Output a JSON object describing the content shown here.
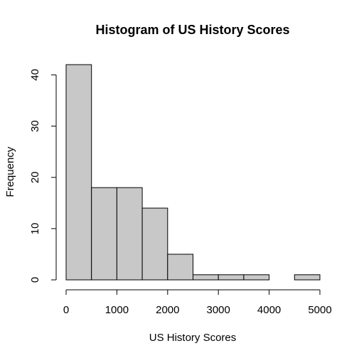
{
  "chart_data": {
    "type": "bar",
    "title": "Histogram of US History Scores",
    "xlabel": "US History Scores",
    "ylabel": "Frequency",
    "bins": [
      {
        "start": 0,
        "end": 500,
        "count": 42
      },
      {
        "start": 500,
        "end": 1000,
        "count": 18
      },
      {
        "start": 1000,
        "end": 1500,
        "count": 18
      },
      {
        "start": 1500,
        "end": 2000,
        "count": 14
      },
      {
        "start": 2000,
        "end": 2500,
        "count": 5
      },
      {
        "start": 2500,
        "end": 3000,
        "count": 1
      },
      {
        "start": 3000,
        "end": 3500,
        "count": 1
      },
      {
        "start": 3500,
        "end": 4000,
        "count": 1
      },
      {
        "start": 4000,
        "end": 4500,
        "count": 0
      },
      {
        "start": 4500,
        "end": 5000,
        "count": 1
      }
    ],
    "xlim": [
      0,
      5000
    ],
    "ylim": [
      0,
      42
    ],
    "xticks": [
      "0",
      "1000",
      "2000",
      "3000",
      "4000",
      "5000"
    ],
    "yticks": [
      "0",
      "10",
      "20",
      "30",
      "40"
    ],
    "bar_color": "#c8c8c8",
    "grid": false
  }
}
